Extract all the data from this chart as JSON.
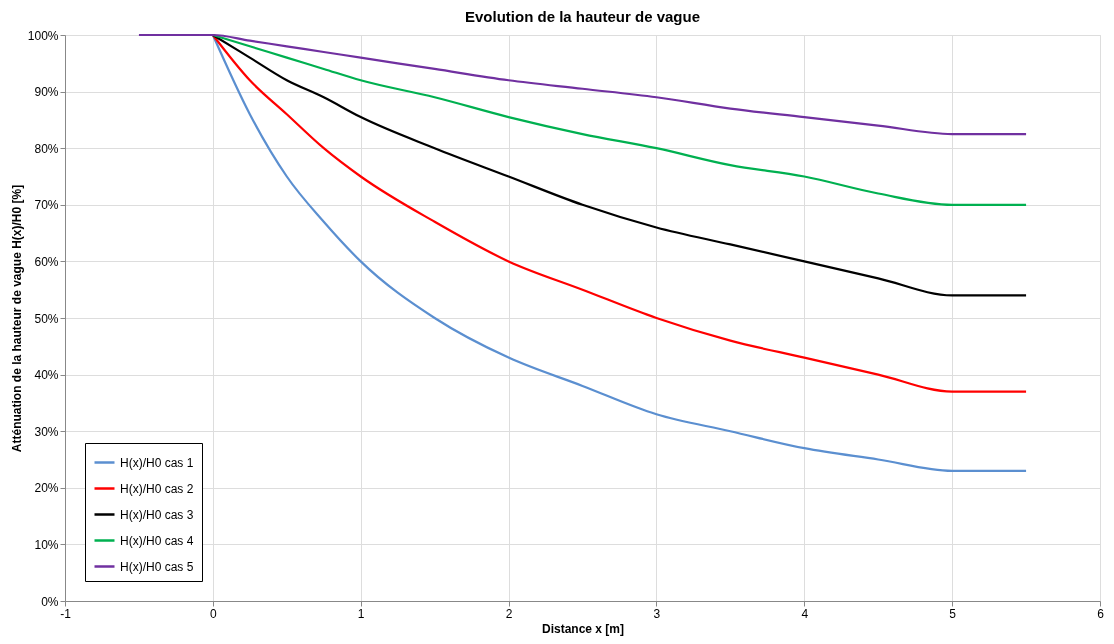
{
  "chart_data": {
    "type": "line",
    "title": "Evolution de la hauteur de vague",
    "xlabel": "Distance x [m]",
    "ylabel": "Atténuation de la hauteur de  vague  H(x)/H0 [%]",
    "x": [
      -0.5,
      0,
      0.25,
      0.5,
      0.75,
      1,
      1.5,
      2,
      2.5,
      3,
      3.5,
      4,
      4.5,
      5,
      5.5
    ],
    "series": [
      {
        "name": "H(x)/H0 cas 1",
        "color": "#5b8fd0",
        "values": [
          null,
          100,
          86,
          75,
          67,
          60,
          50,
          43,
          38,
          33,
          30,
          27,
          25,
          23,
          23
        ]
      },
      {
        "name": "H(x)/H0 cas 2",
        "color": "#ff0000",
        "values": [
          null,
          100,
          92,
          86,
          80,
          75,
          67,
          60,
          55,
          50,
          46,
          43,
          40,
          37,
          37
        ]
      },
      {
        "name": "H(x)/H0 cas 3",
        "color": "#000000",
        "values": [
          null,
          100,
          96,
          92,
          89,
          85.5,
          80,
          75,
          70,
          66,
          63,
          60,
          57,
          54,
          54
        ]
      },
      {
        "name": "H(x)/H0 cas 4",
        "color": "#00b050",
        "values": [
          null,
          100,
          98,
          96,
          94,
          92,
          89,
          85.5,
          82.5,
          80,
          77,
          75,
          72,
          70,
          70
        ]
      },
      {
        "name": "H(x)/H0 cas 5",
        "color": "#7030a0",
        "values": [
          100,
          100,
          99,
          98,
          97,
          96,
          94,
          92,
          90.5,
          89,
          87,
          85.5,
          84,
          82.5,
          82.5
        ]
      }
    ],
    "xlim": [
      -1,
      6
    ],
    "xticks": [
      -1,
      0,
      1,
      2,
      3,
      4,
      5,
      6
    ],
    "ylim": [
      0,
      100
    ],
    "yticks": [
      {
        "value": 0,
        "label": "0%"
      },
      {
        "value": 10,
        "label": "10%"
      },
      {
        "value": 20,
        "label": "20%"
      },
      {
        "value": 30,
        "label": "30%"
      },
      {
        "value": 40,
        "label": "40%"
      },
      {
        "value": 50,
        "label": "50%"
      },
      {
        "value": 60,
        "label": "60%"
      },
      {
        "value": 70,
        "label": "70%"
      },
      {
        "value": 80,
        "label": "80%"
      },
      {
        "value": 90,
        "label": "90%"
      },
      {
        "value": 100,
        "label": "100%"
      }
    ],
    "grid": true,
    "legend": "bottom left",
    "marker": "none",
    "line_style": "solid"
  }
}
